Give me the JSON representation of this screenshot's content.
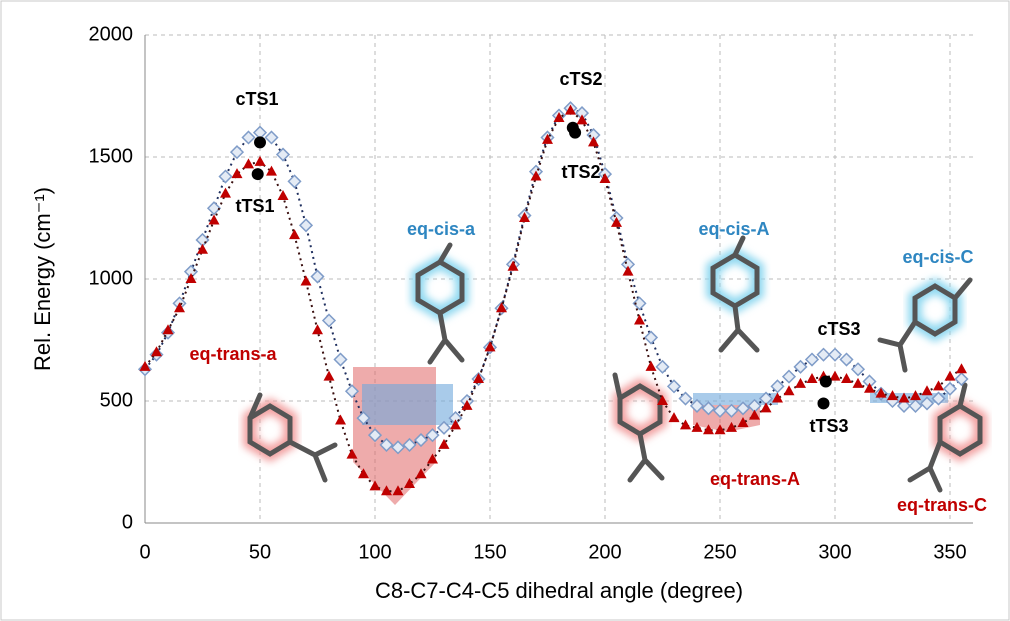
{
  "chart_data": {
    "type": "line",
    "y_label": "Rel. Energy (cm⁻¹)",
    "x_label": "C8-C7-C4-C5 dihedral angle (degree)",
    "x": [
      0,
      5,
      10,
      15,
      20,
      25,
      30,
      35,
      40,
      45,
      50,
      55,
      60,
      65,
      70,
      75,
      80,
      85,
      90,
      95,
      100,
      105,
      110,
      115,
      120,
      125,
      130,
      135,
      140,
      145,
      150,
      155,
      160,
      165,
      170,
      175,
      180,
      185,
      190,
      195,
      200,
      205,
      210,
      215,
      220,
      225,
      230,
      235,
      240,
      245,
      250,
      255,
      260,
      265,
      270,
      275,
      280,
      285,
      290,
      295,
      300,
      305,
      310,
      315,
      320,
      325,
      330,
      335,
      340,
      345,
      350,
      355
    ],
    "series": [
      {
        "color": "#7f9cc8",
        "marker": "diamond",
        "line_color": "#1f2f5f",
        "values": [
          630,
          690,
          780,
          900,
          1030,
          1160,
          1290,
          1420,
          1520,
          1580,
          1600,
          1580,
          1510,
          1400,
          1220,
          1010,
          830,
          670,
          540,
          430,
          360,
          320,
          310,
          320,
          340,
          360,
          390,
          430,
          500,
          590,
          720,
          880,
          1060,
          1260,
          1440,
          1580,
          1670,
          1700,
          1680,
          1590,
          1430,
          1250,
          1060,
          900,
          760,
          640,
          560,
          510,
          480,
          470,
          460,
          460,
          470,
          480,
          510,
          560,
          600,
          640,
          670,
          690,
          690,
          670,
          630,
          580,
          530,
          500,
          480,
          480,
          490,
          510,
          550,
          590
        ]
      },
      {
        "color": "#c00000",
        "marker": "triangle",
        "line_color": "#3a0f0f",
        "values": [
          640,
          700,
          790,
          880,
          1000,
          1120,
          1240,
          1350,
          1430,
          1470,
          1480,
          1440,
          1340,
          1180,
          990,
          790,
          600,
          420,
          280,
          200,
          150,
          130,
          130,
          160,
          200,
          260,
          320,
          400,
          480,
          590,
          720,
          880,
          1050,
          1250,
          1420,
          1570,
          1660,
          1690,
          1650,
          1560,
          1410,
          1230,
          1030,
          830,
          640,
          500,
          430,
          400,
          390,
          380,
          380,
          390,
          410,
          440,
          470,
          510,
          540,
          570,
          590,
          600,
          600,
          590,
          570,
          550,
          530,
          520,
          510,
          520,
          540,
          560,
          600,
          630
        ]
      }
    ],
    "ts_points": {
      "color": "#000000",
      "x": [
        50,
        49,
        186,
        187,
        296,
        295
      ],
      "values": [
        1560,
        1430,
        1620,
        1600,
        580,
        490
      ]
    },
    "annotations": [
      {
        "text": "cTS1",
        "color": "#000000"
      },
      {
        "text": "tTS1",
        "color": "#000000"
      },
      {
        "text": "cTS2",
        "color": "#000000"
      },
      {
        "text": "tTS2",
        "color": "#000000"
      },
      {
        "text": "cTS3",
        "color": "#000000"
      },
      {
        "text": "tTS3",
        "color": "#000000"
      },
      {
        "text": "eq-cis-a",
        "color": "#2e86c1"
      },
      {
        "text": "eq-trans-a",
        "color": "#c00000"
      },
      {
        "text": "eq-cis-A",
        "color": "#2e86c1"
      },
      {
        "text": "eq-trans-A",
        "color": "#c00000"
      },
      {
        "text": "eq-cis-C",
        "color": "#2e86c1"
      },
      {
        "text": "eq-trans-C",
        "color": "#c00000"
      }
    ],
    "xlim": [
      0,
      360
    ],
    "xticks": [
      0,
      50,
      100,
      150,
      200,
      250,
      300,
      350
    ],
    "ylim": [
      0,
      2000
    ],
    "yticks": [
      0,
      500,
      1000,
      1500,
      2000
    ],
    "grid": true
  }
}
